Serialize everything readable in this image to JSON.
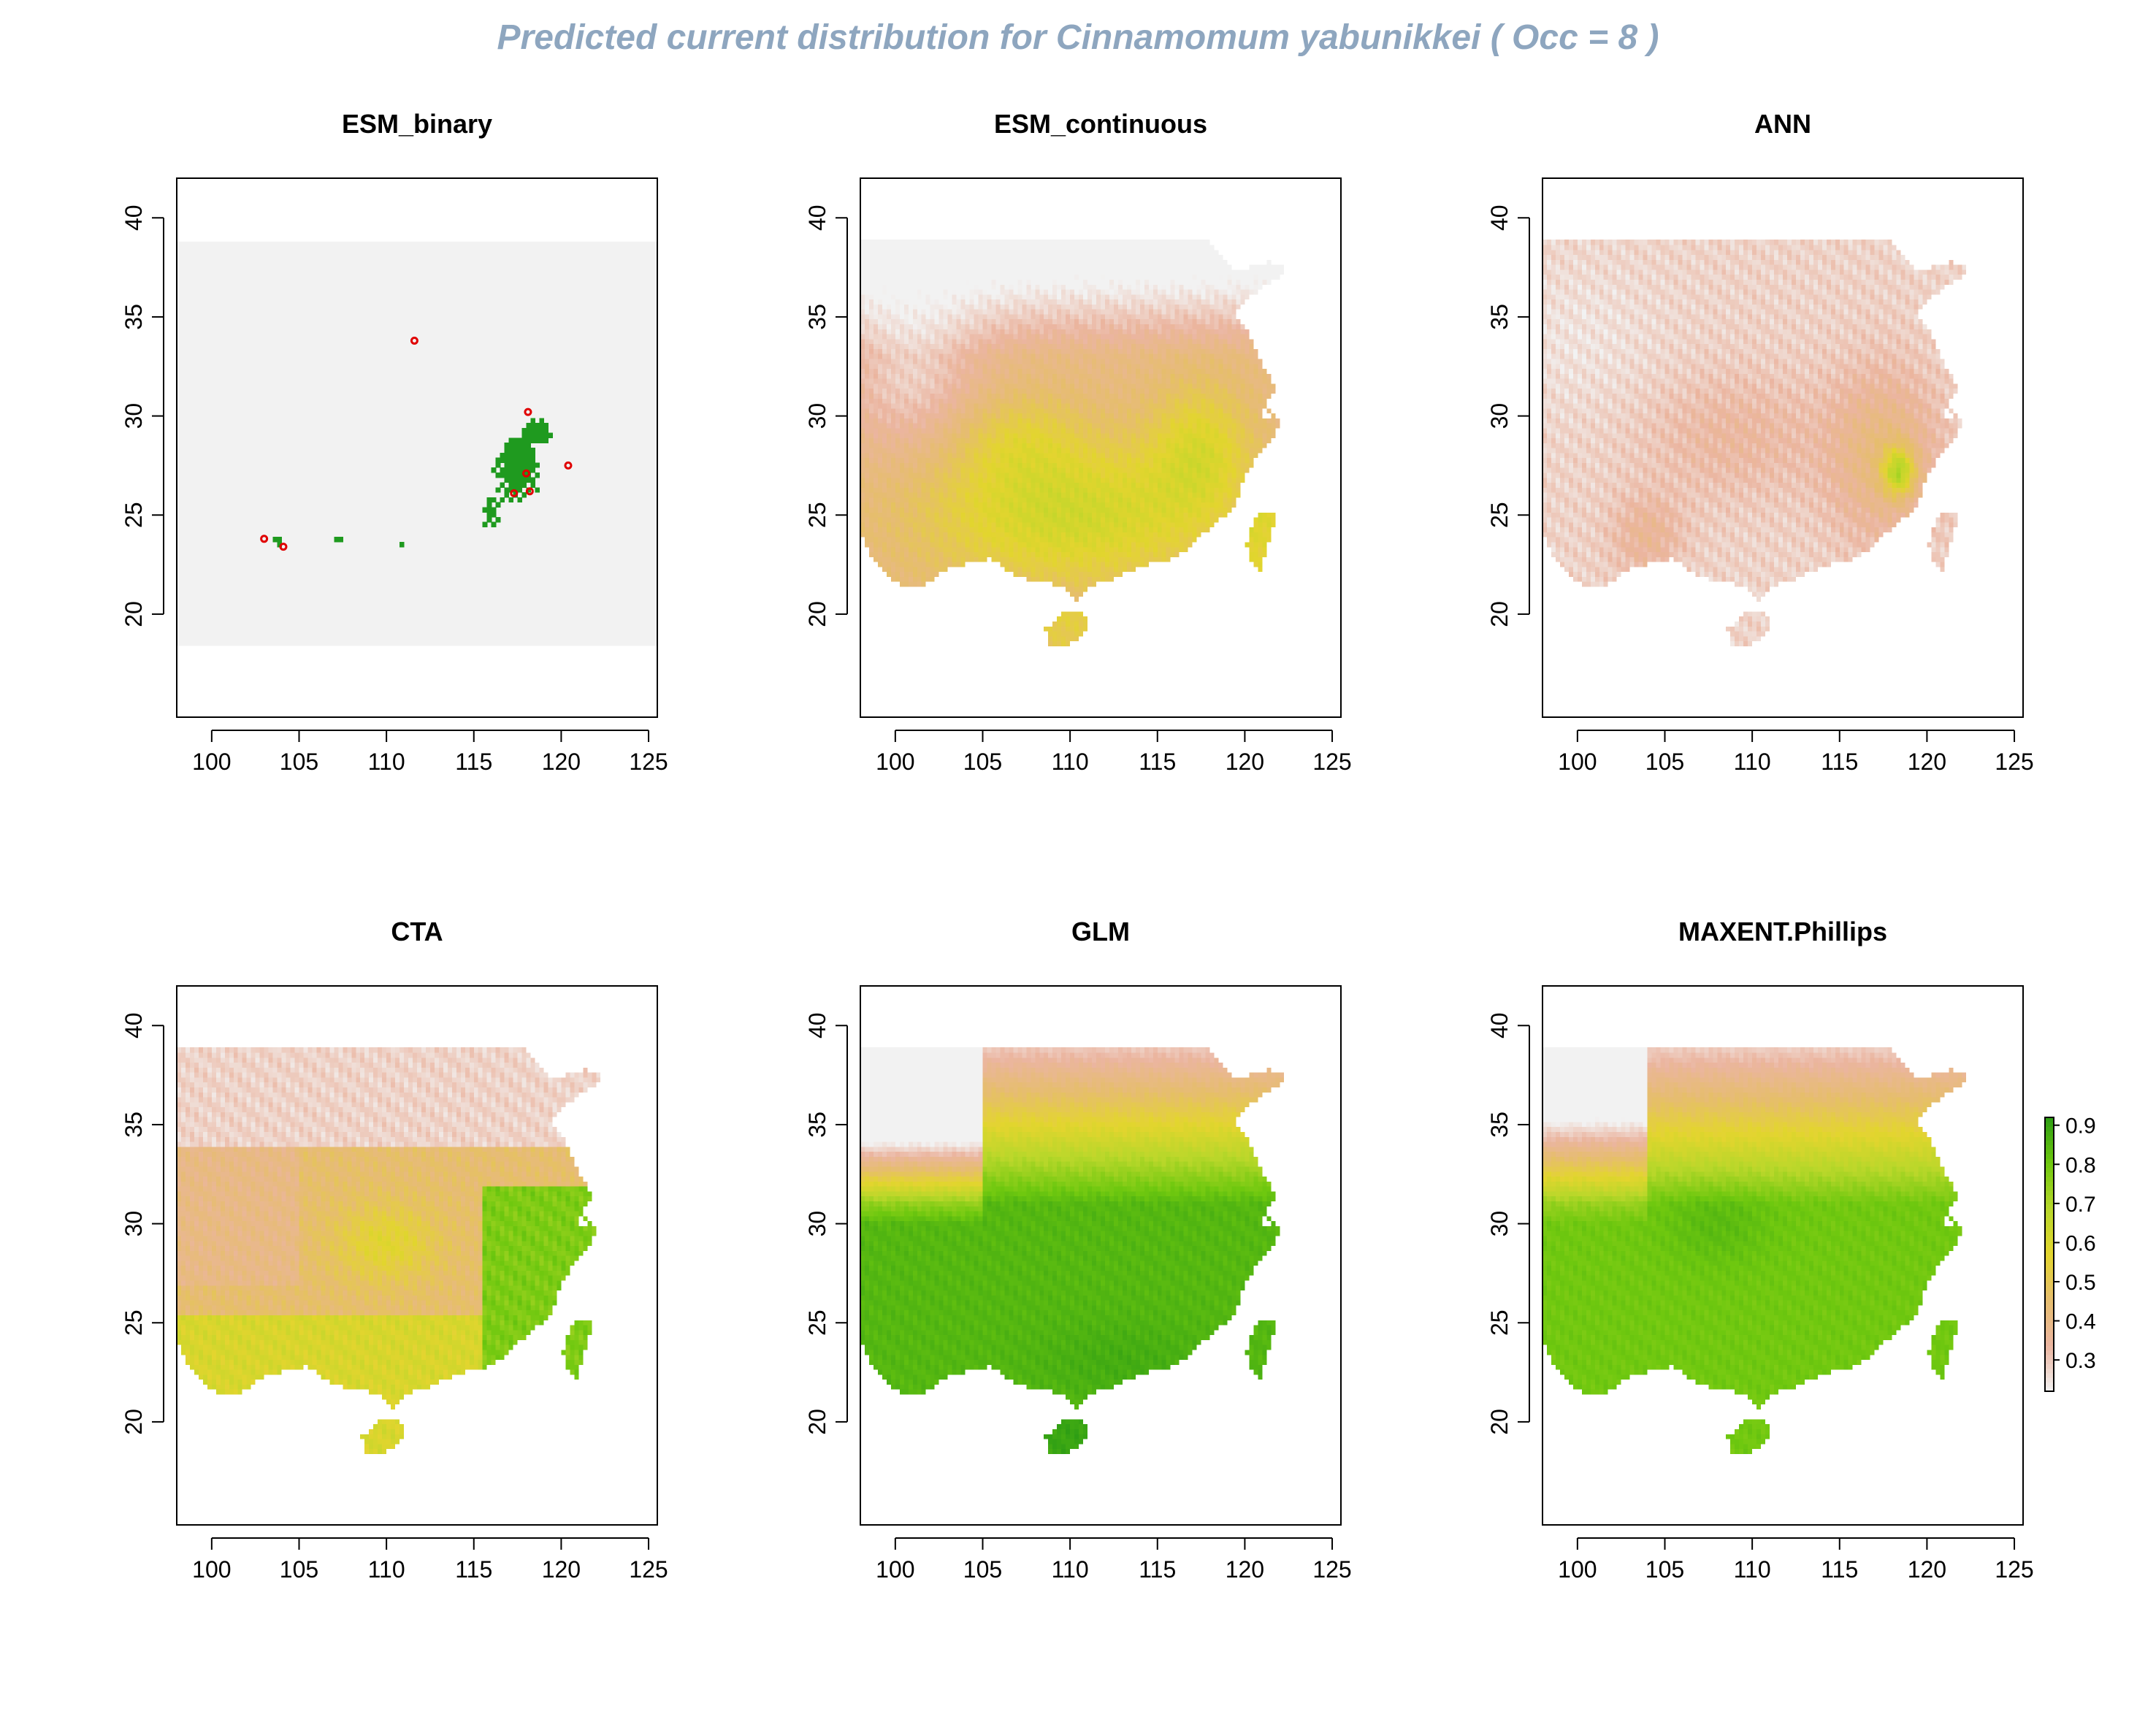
{
  "title": "Predicted current distribution for Cinnamomum yabunikkei  ( Occ =  8  )",
  "colors": {
    "title": "#8ea6bf",
    "nodata": "#f2f2f2",
    "presence": "#1f9a1f",
    "occurrence": "#e00000",
    "ramp": [
      "#f2f2f2",
      "#ebb5a0",
      "#e6bd6e",
      "#e3d52e",
      "#b8d72a",
      "#6fc80f",
      "#2e9e14"
    ]
  },
  "legend": {
    "ticks": [
      "0.9",
      "0.8",
      "0.7",
      "0.6",
      "0.5",
      "0.4",
      "0.3"
    ],
    "values": [
      0.9,
      0.8,
      0.7,
      0.6,
      0.5,
      0.4,
      0.3
    ],
    "range": [
      0.22,
      0.92
    ],
    "placement": "right of MAXENT.Phillips panel"
  },
  "chart_data": [
    {
      "type": "heatmap",
      "title": "ESM_binary",
      "render": "binary",
      "xlim": [
        98,
        125.5
      ],
      "ylim": [
        14.8,
        42
      ],
      "raster_extent": [
        98,
        125.5,
        18.4,
        38.8
      ],
      "xticks": [
        "100",
        "105",
        "110",
        "115",
        "120",
        "125"
      ],
      "yticks": [
        "20",
        "25",
        "30",
        "35",
        "40"
      ],
      "occurrences": [
        [
          103.0,
          23.8
        ],
        [
          104.1,
          23.4
        ],
        [
          111.6,
          33.8
        ],
        [
          118.1,
          30.2
        ],
        [
          118.0,
          27.1
        ],
        [
          117.3,
          26.1
        ],
        [
          118.2,
          26.2
        ],
        [
          120.4,
          27.5
        ]
      ]
    },
    {
      "type": "heatmap",
      "title": "ESM_continuous",
      "render": "continuous",
      "model": "esm",
      "xlim": [
        98,
        125.5
      ],
      "ylim": [
        14.8,
        42
      ],
      "raster_extent": [
        98,
        125.5,
        18.4,
        38.8
      ],
      "xticks": [
        "100",
        "105",
        "110",
        "115",
        "120",
        "125"
      ],
      "yticks": [
        "20",
        "25",
        "30",
        "35",
        "40"
      ]
    },
    {
      "type": "heatmap",
      "title": "ANN",
      "render": "continuous",
      "model": "ann",
      "xlim": [
        98,
        125.5
      ],
      "ylim": [
        14.8,
        42
      ],
      "raster_extent": [
        98,
        125.5,
        18.4,
        38.8
      ],
      "xticks": [
        "100",
        "105",
        "110",
        "115",
        "120",
        "125"
      ],
      "yticks": [
        "20",
        "25",
        "30",
        "35",
        "40"
      ]
    },
    {
      "type": "heatmap",
      "title": "CTA",
      "render": "continuous",
      "model": "cta",
      "xlim": [
        98,
        125.5
      ],
      "ylim": [
        14.8,
        42
      ],
      "raster_extent": [
        98,
        125.5,
        18.4,
        38.8
      ],
      "xticks": [
        "100",
        "105",
        "110",
        "115",
        "120",
        "125"
      ],
      "yticks": [
        "20",
        "25",
        "30",
        "35",
        "40"
      ]
    },
    {
      "type": "heatmap",
      "title": "GLM",
      "render": "continuous",
      "model": "glm",
      "xlim": [
        98,
        125.5
      ],
      "ylim": [
        14.8,
        42
      ],
      "raster_extent": [
        98,
        125.5,
        18.4,
        38.8
      ],
      "xticks": [
        "100",
        "105",
        "110",
        "115",
        "120",
        "125"
      ],
      "yticks": [
        "20",
        "25",
        "30",
        "35",
        "40"
      ]
    },
    {
      "type": "heatmap",
      "title": "MAXENT.Phillips",
      "render": "continuous",
      "model": "maxent",
      "xlim": [
        98,
        125.5
      ],
      "ylim": [
        14.8,
        42
      ],
      "raster_extent": [
        98,
        125.5,
        18.4,
        38.8
      ],
      "xticks": [
        "100",
        "105",
        "110",
        "115",
        "120",
        "125"
      ],
      "yticks": [
        "20",
        "25",
        "30",
        "35",
        "40"
      ]
    }
  ]
}
